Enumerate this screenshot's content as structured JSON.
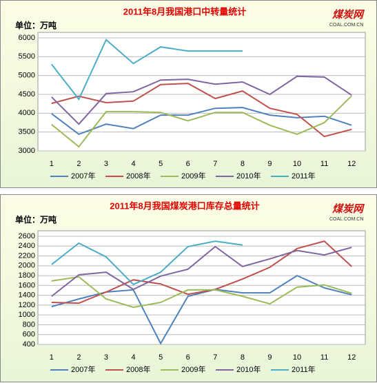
{
  "chart_data": [
    {
      "type": "line",
      "title": "2011年8月我国港口中转量统计",
      "unit": "单位：万吨",
      "logo": "煤炭网",
      "logo_sub": "COAL.COM.CN",
      "categories": [
        "1",
        "2",
        "3",
        "4",
        "5",
        "6",
        "7",
        "8",
        "9",
        "10",
        "11",
        "12"
      ],
      "ylim": [
        3000,
        6000
      ],
      "yticks": [
        3000,
        3500,
        4000,
        4500,
        5000,
        5500,
        6000
      ],
      "grid": true,
      "series": [
        {
          "name": "2007年",
          "color": "#4f81bd",
          "values": [
            3990,
            3440,
            3710,
            3590,
            3950,
            3950,
            4130,
            4150,
            3950,
            3880,
            3920,
            3680
          ]
        },
        {
          "name": "2008年",
          "color": "#c0504d",
          "values": [
            4260,
            4450,
            4280,
            4320,
            4760,
            4790,
            4390,
            4590,
            4130,
            3970,
            3380,
            3570
          ]
        },
        {
          "name": "2009年",
          "color": "#9bbb59",
          "values": [
            3700,
            3110,
            4040,
            4040,
            4020,
            3800,
            4020,
            4020,
            3680,
            3440,
            3750,
            4460
          ]
        },
        {
          "name": "2010年",
          "color": "#8064a2",
          "values": [
            4430,
            3710,
            4520,
            4570,
            4880,
            4900,
            4770,
            4830,
            4500,
            4980,
            4960,
            4480
          ]
        },
        {
          "name": "2011年",
          "color": "#4bacc6",
          "values": [
            5300,
            4370,
            5950,
            5320,
            5760,
            5650,
            5650,
            5650,
            null,
            null,
            null,
            null
          ]
        }
      ]
    },
    {
      "type": "line",
      "title": "2011年8月我国煤炭港口库存总量统计",
      "unit": "单位：万吨",
      "logo": "煤炭网",
      "logo_sub": "COAL.COM.CN",
      "categories": [
        "1",
        "2",
        "3",
        "4",
        "5",
        "6",
        "7",
        "8",
        "9",
        "10",
        "11",
        "12"
      ],
      "ylim": [
        400,
        2600
      ],
      "yticks": [
        400,
        600,
        800,
        1000,
        1200,
        1400,
        1600,
        1800,
        2000,
        2200,
        2400,
        2600
      ],
      "grid": true,
      "series": [
        {
          "name": "2007年",
          "color": "#4f81bd",
          "values": [
            1170,
            1325,
            1465,
            1510,
            420,
            1380,
            1520,
            1450,
            1450,
            1800,
            1550,
            1410
          ]
        },
        {
          "name": "2008年",
          "color": "#c0504d",
          "values": [
            1255,
            1240,
            1465,
            1715,
            1630,
            1420,
            1520,
            1730,
            1970,
            2350,
            2500,
            1985
          ]
        },
        {
          "name": "2009年",
          "color": "#9bbb59",
          "values": [
            1690,
            1775,
            1325,
            1155,
            1255,
            1510,
            1510,
            1380,
            1225,
            1565,
            1610,
            1440
          ]
        },
        {
          "name": "2010年",
          "color": "#8064a2",
          "values": [
            1380,
            1815,
            1870,
            1520,
            1790,
            1930,
            2390,
            1985,
            2140,
            2310,
            2220,
            2375
          ]
        },
        {
          "name": "2011年",
          "color": "#4bacc6",
          "values": [
            2025,
            2460,
            2180,
            1620,
            1870,
            2390,
            2500,
            2420,
            null,
            null,
            null,
            null
          ]
        }
      ]
    }
  ]
}
